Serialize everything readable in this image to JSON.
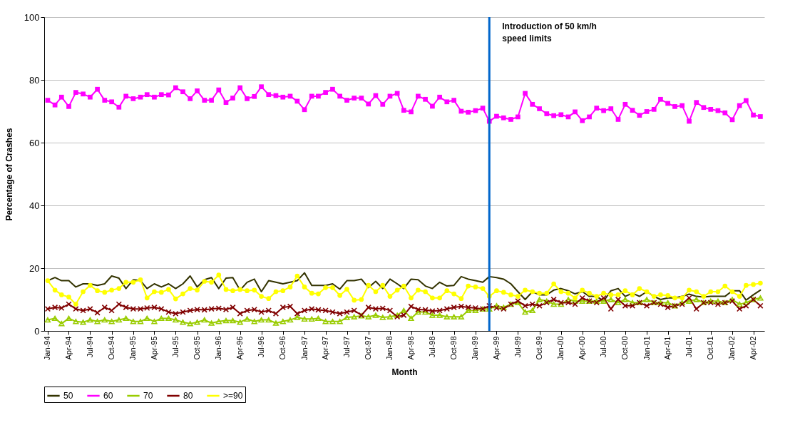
{
  "chart_data": {
    "type": "line",
    "xlabel": "Month",
    "ylabel": "Percentage of Crashes",
    "x": [
      "1994-01",
      "1994-02",
      "1994-03",
      "1994-04",
      "1994-05",
      "1994-06",
      "1994-07",
      "1994-08",
      "1994-09",
      "1994-10",
      "1994-11",
      "1994-12",
      "1995-01",
      "1995-02",
      "1995-03",
      "1995-04",
      "1995-05",
      "1995-06",
      "1995-07",
      "1995-08",
      "1995-09",
      "1995-10",
      "1995-11",
      "1995-12",
      "1996-01",
      "1996-02",
      "1996-03",
      "1996-04",
      "1996-05",
      "1996-06",
      "1996-07",
      "1996-08",
      "1996-09",
      "1996-10",
      "1996-11",
      "1996-12",
      "1997-01",
      "1997-02",
      "1997-03",
      "1997-04",
      "1997-05",
      "1997-06",
      "1997-07",
      "1997-08",
      "1997-09",
      "1997-10",
      "1997-11",
      "1997-12",
      "1998-01",
      "1998-02",
      "1998-03",
      "1998-04",
      "1998-05",
      "1998-06",
      "1998-07",
      "1998-08",
      "1998-09",
      "1998-10",
      "1998-11",
      "1998-12",
      "1999-01",
      "1999-02",
      "1999-03",
      "1999-04",
      "1999-05",
      "1999-06",
      "1999-07",
      "1999-08",
      "1999-09",
      "1999-10",
      "1999-11",
      "1999-12",
      "2000-01",
      "2000-02",
      "2000-03",
      "2000-04",
      "2000-05",
      "2000-06",
      "2000-07",
      "2000-08",
      "2000-09",
      "2000-10",
      "2000-11",
      "2000-12",
      "2001-01",
      "2001-02",
      "2001-03",
      "2001-04",
      "2001-05",
      "2001-06",
      "2001-07",
      "2001-08",
      "2001-09",
      "2001-10",
      "2001-11",
      "2001-12",
      "2002-01",
      "2002-02",
      "2002-03",
      "2002-04",
      "2002-05"
    ],
    "series": [
      {
        "name": "50",
        "color": "#333300",
        "marker": "none",
        "values": [
          16,
          17,
          16,
          16,
          14,
          15,
          15,
          14.5,
          15,
          17.5,
          16.8,
          13.5,
          16.3,
          16,
          13.5,
          15,
          14,
          15,
          13.5,
          15,
          17.5,
          14,
          16.3,
          17,
          13.5,
          16.8,
          17,
          13,
          15.5,
          16.5,
          12.5,
          16,
          15.5,
          15,
          15.5,
          16,
          18.5,
          14.5,
          14.5,
          14.5,
          15,
          13.3,
          16,
          16,
          16.5,
          13.8,
          15.8,
          13.5,
          16.5,
          15,
          13.5,
          16.5,
          16.3,
          14.3,
          13.5,
          15.5,
          14.3,
          14.5,
          17.3,
          16.5,
          16,
          15.5,
          17.3,
          17,
          16.5,
          15,
          12.5,
          10,
          12.5,
          11.5,
          11.5,
          13,
          13.5,
          12.8,
          11.8,
          12.5,
          11,
          11,
          9.5,
          12.8,
          13.5,
          11,
          12,
          11,
          12.5,
          11,
          10,
          10.5,
          10.5,
          11,
          11.7,
          11,
          10.8,
          11,
          11,
          11,
          12.8,
          12.8,
          9.8,
          11.5,
          13
        ]
      },
      {
        "name": "60",
        "color": "#ff00ff",
        "marker": "square",
        "values": [
          73.5,
          72,
          74.5,
          71.5,
          76,
          75.5,
          74.5,
          77,
          73.5,
          73,
          71.3,
          74.8,
          74,
          74.5,
          75.3,
          74.5,
          75.3,
          75.2,
          77.5,
          76.2,
          74,
          76.5,
          73.5,
          73.5,
          76.8,
          72.8,
          74.2,
          77.5,
          74,
          74.7,
          77.8,
          75.3,
          75,
          74.5,
          74.8,
          73.2,
          70.5,
          74.8,
          74.8,
          76,
          77,
          74.8,
          73.5,
          74.2,
          74.2,
          72.3,
          75,
          72.2,
          74.8,
          75.7,
          70.3,
          69.8,
          74.8,
          73.8,
          71.6,
          74.5,
          73,
          73.5,
          70,
          69.7,
          70.2,
          71,
          66.8,
          68.4,
          67.9,
          67.4,
          68.2,
          75.7,
          72.2,
          70.8,
          69.2,
          68.6,
          68.9,
          68.2,
          69.8,
          67,
          68.2,
          71,
          70.2,
          70.8,
          67.4,
          72.2,
          70.3,
          68.7,
          69.9,
          70.6,
          73.8,
          72.5,
          71.5,
          71.8,
          66.8,
          72.8,
          71.2,
          70.6,
          70.2,
          69.5,
          67.3,
          71.8,
          73.4,
          68.8,
          68.3
        ]
      },
      {
        "name": "70",
        "color": "#99cc00",
        "marker": "triangle",
        "values": [
          3.5,
          4,
          2.3,
          4,
          3,
          2.8,
          3.5,
          3,
          3.5,
          3,
          3.5,
          4,
          3,
          3,
          4,
          3,
          4,
          4,
          3.5,
          2.8,
          2.3,
          2.8,
          3.5,
          2.5,
          3,
          3.3,
          3.3,
          2.8,
          3.8,
          3,
          3.5,
          3.5,
          2.5,
          3,
          3.5,
          4.3,
          3.8,
          3.8,
          4,
          3,
          3,
          3,
          4.3,
          4.5,
          4.8,
          4.5,
          5,
          4.3,
          4.5,
          5,
          6.5,
          4,
          6,
          6,
          5,
          5,
          4.5,
          4.5,
          4.5,
          6.5,
          6.5,
          7,
          7,
          8,
          7.5,
          8.5,
          9,
          6,
          6.5,
          10,
          9.5,
          8.5,
          8.5,
          10,
          9.5,
          9.5,
          9.5,
          9.5,
          9.5,
          10,
          9,
          10,
          9,
          9,
          10,
          9,
          9,
          9,
          8,
          9,
          9.5,
          10,
          9,
          9.5,
          9.5,
          9,
          10,
          8.5,
          9,
          10,
          10.5
        ]
      },
      {
        "name": "80",
        "color": "#800000",
        "marker": "cross",
        "values": [
          7,
          7.5,
          7.3,
          8.5,
          7,
          6.5,
          7,
          5.8,
          7.5,
          6.5,
          8.5,
          7.5,
          7,
          7,
          7.3,
          7.5,
          7,
          6,
          5.5,
          6,
          6.5,
          6.8,
          6.7,
          7,
          7.2,
          6.8,
          7.5,
          5.5,
          6.5,
          6.8,
          6,
          6.5,
          5.5,
          7.5,
          7.8,
          5.5,
          6.5,
          7,
          6.7,
          6.5,
          6,
          5.5,
          6,
          6.5,
          5,
          7.5,
          7,
          7.2,
          6.5,
          4.5,
          5,
          7.8,
          6.8,
          6.7,
          6.3,
          6.5,
          7,
          7.5,
          7.8,
          7.5,
          7.3,
          7,
          8,
          7.3,
          7,
          8.5,
          9.5,
          8,
          8.5,
          8,
          9,
          10,
          9,
          9,
          8.5,
          10.5,
          9.5,
          9,
          10.5,
          7,
          10,
          8,
          8,
          9,
          8,
          9,
          8.5,
          7.5,
          8,
          8.5,
          10.5,
          7,
          9,
          9,
          8.5,
          9,
          9.5,
          7,
          8,
          10,
          8
        ]
      },
      {
        "name": ">=90",
        "color": "#ffff00",
        "marker": "circle",
        "values": [
          16,
          13,
          11.5,
          10.8,
          8.5,
          12.5,
          14.5,
          12.8,
          12.3,
          13,
          13.5,
          15.5,
          15.5,
          16.3,
          10.5,
          12.5,
          12.3,
          13.2,
          10.2,
          11.8,
          13.5,
          13,
          15.8,
          15.5,
          17.8,
          13.2,
          12.8,
          13.2,
          12.8,
          13,
          11,
          10.3,
          12.5,
          12.8,
          14,
          17.5,
          14,
          12,
          11.8,
          13.8,
          13.8,
          11.3,
          13.3,
          9.8,
          10,
          14.5,
          12.5,
          14.5,
          11,
          13,
          14.3,
          10.5,
          13,
          12.5,
          10.5,
          10.5,
          12.8,
          11.8,
          10.3,
          14.3,
          14,
          13.5,
          11,
          12.8,
          12.3,
          11.5,
          11,
          13,
          12.5,
          12,
          12,
          15,
          12.5,
          12,
          10.5,
          13,
          12,
          11,
          12,
          11.5,
          11.5,
          12.8,
          11.5,
          13.5,
          12.5,
          11,
          11.5,
          11.3,
          10.5,
          10.5,
          13,
          12.5,
          11,
          12.5,
          12.5,
          14.3,
          12.5,
          11,
          14.5,
          14.8,
          15.2
        ]
      }
    ],
    "xlim": [
      "1993-12-17",
      "2002-05-18"
    ],
    "xticks": [
      {
        "value": "1994-01",
        "label": "Jan-94"
      },
      {
        "value": "1994-04",
        "label": "Apr-94"
      },
      {
        "value": "1994-07",
        "label": "Jul-94"
      },
      {
        "value": "1994-10",
        "label": "Oct-94"
      },
      {
        "value": "1995-01",
        "label": "Jan-95"
      },
      {
        "value": "1995-04",
        "label": "Apr-95"
      },
      {
        "value": "1995-07",
        "label": "Jul-95"
      },
      {
        "value": "1995-10",
        "label": "Oct-95"
      },
      {
        "value": "1996-01",
        "label": "Jan-96"
      },
      {
        "value": "1996-04",
        "label": "Apr-96"
      },
      {
        "value": "1996-07",
        "label": "Jul-96"
      },
      {
        "value": "1996-10",
        "label": "Oct-96"
      },
      {
        "value": "1997-01",
        "label": "Jan-97"
      },
      {
        "value": "1997-04",
        "label": "Apr-97"
      },
      {
        "value": "1997-07",
        "label": "Jul-97"
      },
      {
        "value": "1997-10",
        "label": "Oct-97"
      },
      {
        "value": "1998-01",
        "label": "Jan-98"
      },
      {
        "value": "1998-04",
        "label": "Apr-98"
      },
      {
        "value": "1998-07",
        "label": "Jul-98"
      },
      {
        "value": "1998-10",
        "label": "Oct-98"
      },
      {
        "value": "1999-01",
        "label": "Jan-99"
      },
      {
        "value": "1999-04",
        "label": "Apr-99"
      },
      {
        "value": "1999-07",
        "label": "Jul-99"
      },
      {
        "value": "1999-10",
        "label": "Oct-99"
      },
      {
        "value": "2000-01",
        "label": "Jan-00"
      },
      {
        "value": "2000-04",
        "label": "Apr-00"
      },
      {
        "value": "2000-07",
        "label": "Jul-00"
      },
      {
        "value": "2000-10",
        "label": "Oct-00"
      },
      {
        "value": "2001-01",
        "label": "Jan-01"
      },
      {
        "value": "2001-04",
        "label": "Apr-01"
      },
      {
        "value": "2001-07",
        "label": "Jul-01"
      },
      {
        "value": "2001-10",
        "label": "Oct-01"
      },
      {
        "value": "2002-01",
        "label": "Jan-02"
      },
      {
        "value": "2002-04",
        "label": "Apr-02"
      }
    ],
    "ylim": [
      0,
      100
    ],
    "yticks": [
      0,
      20,
      40,
      60,
      80,
      100
    ],
    "grid": "y",
    "legend": "bottom",
    "line_style": "solid",
    "ref_lines": [
      {
        "axis": "x",
        "value": "1999-03",
        "label": "Introduction of 50 km/h speed limits",
        "color": "#0066cc"
      }
    ]
  }
}
